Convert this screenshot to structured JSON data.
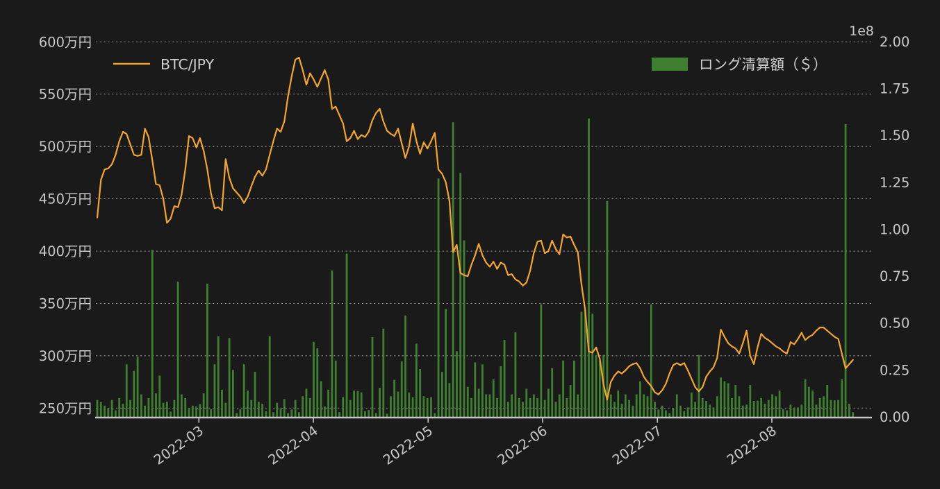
{
  "chart_data": {
    "type": "line+bar",
    "title": "",
    "background": "#1a1a1a",
    "text_color": "#c9c9c9",
    "grid": {
      "show": true,
      "color": "#c0c0c0",
      "style": "dashed"
    },
    "legend_position": "top",
    "legend": [
      {
        "label": "BTC/JPY",
        "marker": "line",
        "color": "#f4a62a"
      },
      {
        "label": "ロング清算額（＄）",
        "marker": "rect",
        "color": "#3e8030"
      }
    ],
    "x_axis": {
      "start": "2022-02",
      "end": "2022-08",
      "interval": "daily",
      "tick_labels": [
        "2022-03",
        "2022-04",
        "2022-05",
        "2022-06",
        "2022-07",
        "2022-08"
      ],
      "tick_day_index": [
        27.7,
        58.9,
        90.2,
        121.4,
        152.7,
        183.9
      ],
      "rotation_deg": 35
    },
    "left_axis": {
      "unit": "万円",
      "tick_labels": [
        "600万円",
        "550万円",
        "500万円",
        "450万円",
        "400万円",
        "350万円",
        "300万円",
        "250万円"
      ],
      "tick_values": [
        600,
        550,
        500,
        450,
        400,
        350,
        300,
        250
      ]
    },
    "right_axis": {
      "multiplier": "1e8",
      "tick_labels": [
        "2.00",
        "1.75",
        "1.50",
        "1.25",
        "1.00",
        "0.75",
        "0.50",
        "0.25",
        "0.00"
      ],
      "tick_values": [
        2.0,
        1.75,
        1.5,
        1.25,
        1.0,
        0.75,
        0.5,
        0.25,
        0.0
      ],
      "range": [
        0,
        2.0
      ]
    },
    "series": [
      {
        "name": "BTC/JPY",
        "type": "line",
        "axis": "left",
        "unit": "万円",
        "color": "#f4a62a",
        "values": [
          432,
          468,
          478,
          479,
          483,
          492,
          505,
          514,
          512,
          502,
          492,
          491,
          492,
          517,
          509,
          487,
          464,
          463,
          450,
          427,
          431,
          443,
          442,
          454,
          478,
          510,
          508,
          499,
          508,
          496,
          478,
          455,
          441,
          442,
          439,
          488,
          470,
          460,
          456,
          452,
          446,
          452,
          462,
          471,
          477,
          472,
          478,
          492,
          505,
          517,
          514,
          524,
          548,
          567,
          583,
          585,
          573,
          559,
          570,
          564,
          557,
          565,
          573,
          564,
          536,
          538,
          530,
          522,
          505,
          508,
          515,
          507,
          511,
          509,
          514,
          525,
          532,
          536,
          524,
          515,
          512,
          510,
          517,
          503,
          489,
          500,
          522,
          505,
          493,
          504,
          498,
          505,
          513,
          478,
          474,
          466,
          448,
          399,
          406,
          379,
          377,
          376,
          387,
          396,
          407,
          396,
          389,
          385,
          390,
          383,
          389,
          387,
          377,
          378,
          373,
          371,
          367,
          370,
          381,
          398,
          409,
          410,
          398,
          400,
          410,
          402,
          397,
          416,
          413,
          414,
          406,
          399,
          368,
          344,
          304,
          303,
          308,
          297,
          273,
          258,
          275,
          281,
          285,
          283,
          286,
          290,
          292,
          293,
          288,
          280,
          275,
          271,
          265,
          263,
          267,
          273,
          283,
          291,
          293,
          291,
          293,
          286,
          278,
          270,
          266,
          270,
          280,
          285,
          289,
          298,
          325,
          318,
          312,
          309,
          307,
          302,
          312,
          324,
          300,
          292,
          308,
          321,
          317,
          315,
          312,
          309,
          307,
          304,
          302,
          313,
          311,
          316,
          322,
          315,
          318,
          320,
          324,
          327,
          327,
          324,
          321,
          318,
          316,
          302,
          288,
          292,
          296
        ]
      },
      {
        "name": "ロング清算額（＄）",
        "type": "bar",
        "axis": "right",
        "unit": "$",
        "scale": "1e8",
        "color": "#3e8030",
        "values": [
          0.09,
          0.078,
          0.06,
          0.047,
          0.09,
          0.035,
          0.1,
          0.07,
          0.28,
          0.09,
          0.245,
          0.32,
          0.12,
          0.06,
          0.1,
          0.89,
          0.125,
          0.22,
          0.075,
          0.08,
          0.028,
          0.09,
          0.72,
          0.12,
          0.1,
          0.047,
          0.06,
          0.055,
          0.068,
          0.125,
          0.71,
          0.04,
          0.28,
          0.43,
          0.145,
          0.075,
          0.42,
          0.25,
          0.02,
          0.04,
          0.28,
          0.14,
          0.09,
          0.24,
          0.08,
          0.07,
          0.03,
          0.43,
          0.025,
          0.075,
          0.045,
          0.095,
          0.02,
          0.04,
          0.09,
          0.025,
          0.11,
          0.15,
          0.1,
          0.4,
          0.365,
          0.19,
          0.055,
          0.145,
          0.78,
          0.3,
          0.025,
          0.105,
          0.87,
          0.09,
          0.14,
          0.138,
          0.13,
          0.03,
          0.037,
          0.425,
          0.02,
          0.155,
          0.47,
          0.017,
          0.11,
          0.197,
          0.135,
          0.295,
          0.54,
          0.13,
          0.105,
          0.39,
          0.255,
          0.11,
          0.1,
          0.105,
          0.02,
          1.27,
          0.24,
          0.575,
          0.18,
          1.57,
          0.35,
          1.3,
          0.94,
          0.16,
          0.1,
          0.29,
          0.15,
          0.28,
          0.12,
          0.12,
          0.2,
          0.1,
          0.27,
          0.41,
          0.08,
          0.12,
          0.45,
          0.1,
          0.08,
          0.15,
          0.1,
          0.12,
          0.1,
          0.6,
          0.09,
          0.15,
          0.26,
          0.08,
          0.12,
          0.3,
          0.1,
          0.17,
          0.3,
          0.12,
          0.56,
          0.57,
          1.59,
          0.55,
          0.33,
          0.3,
          0.33,
          1.15,
          0.12,
          0.08,
          0.14,
          0.07,
          0.12,
          0.09,
          0.06,
          0.12,
          0.19,
          0.12,
          0.11,
          0.6,
          0.08,
          0.04,
          0.06,
          0.035,
          0.02,
          0.045,
          0.12,
          0.06,
          0.03,
          0.05,
          0.13,
          0.08,
          0.33,
          0.1,
          0.085,
          0.065,
          0.05,
          0.11,
          0.21,
          0.19,
          0.18,
          0.1,
          0.17,
          0.11,
          0.06,
          0.065,
          0.17,
          0.085,
          0.086,
          0.1,
          0.07,
          0.09,
          0.12,
          0.11,
          0.14,
          0.04,
          0.035,
          0.065,
          0.05,
          0.05,
          0.065,
          0.2,
          0.16,
          0.14,
          0.065,
          0.1,
          0.11,
          0.17,
          0.09,
          0.088,
          0.09,
          0.2,
          1.56,
          0.07,
          0.025
        ]
      }
    ]
  }
}
